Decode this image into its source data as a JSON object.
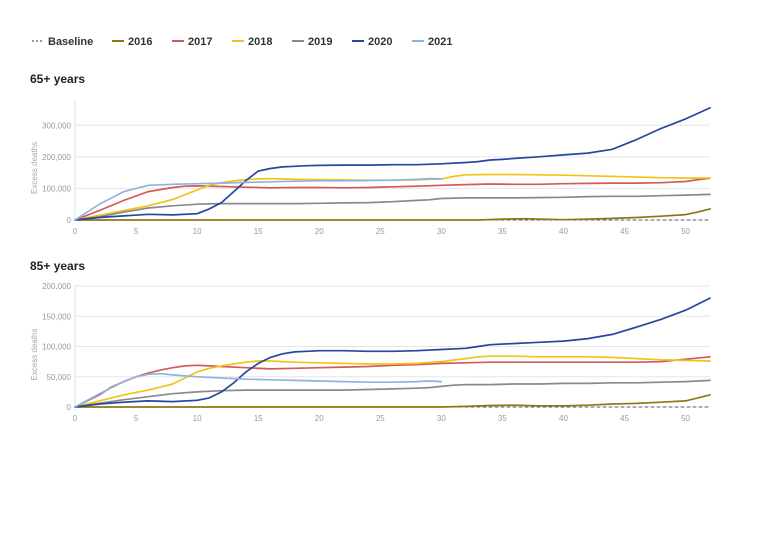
{
  "chart_data": [
    {
      "type": "line",
      "title": "65+ years",
      "xlabel": "",
      "ylabel": "Excess deaths",
      "xlim": [
        0,
        52
      ],
      "ylim": [
        0,
        380000
      ],
      "x_ticks": [
        0,
        5,
        10,
        15,
        20,
        25,
        30,
        35,
        40,
        45,
        50
      ],
      "y_ticks": [
        0,
        100000,
        200000,
        300000
      ],
      "y_tick_labels": [
        "0",
        "100,000",
        "200,000",
        "300,000"
      ],
      "grid": true,
      "legend_position": "top-left",
      "series": [
        {
          "name": "Baseline",
          "color": "#555a70",
          "dashed": true,
          "x": [
            0,
            52
          ],
          "y": [
            0,
            0
          ]
        },
        {
          "name": "2016",
          "color": "#8c7a10",
          "x": [
            0,
            5,
            10,
            15,
            20,
            25,
            30,
            33,
            35,
            37,
            38,
            40,
            42,
            44,
            46,
            48,
            50,
            51,
            52
          ],
          "y": [
            0,
            0,
            0,
            0,
            0,
            0,
            0,
            0,
            3000,
            4000,
            3000,
            1000,
            3000,
            5000,
            8000,
            12000,
            17000,
            25000,
            35000
          ]
        },
        {
          "name": "2017",
          "color": "#d35a5a",
          "x": [
            0,
            2,
            4,
            6,
            8,
            9,
            10,
            12,
            14,
            16,
            18,
            20,
            22,
            24,
            26,
            28,
            30,
            32,
            34,
            36,
            38,
            40,
            42,
            44,
            46,
            48,
            50,
            51,
            52
          ],
          "y": [
            0,
            30000,
            62000,
            90000,
            103000,
            107000,
            108000,
            106000,
            104000,
            102000,
            103000,
            103000,
            102000,
            103000,
            105000,
            107000,
            110000,
            112000,
            114000,
            113000,
            113000,
            115000,
            116000,
            117000,
            117000,
            118000,
            122000,
            128000,
            132000
          ]
        },
        {
          "name": "2018",
          "color": "#f0c419",
          "x": [
            0,
            2,
            4,
            6,
            8,
            9,
            10,
            11,
            12,
            13,
            14,
            15,
            16,
            17,
            18,
            20,
            22,
            24,
            26,
            28,
            30,
            31,
            32,
            34,
            36,
            38,
            40,
            42,
            44,
            46,
            48,
            50,
            52
          ],
          "y": [
            0,
            15000,
            30000,
            45000,
            65000,
            80000,
            95000,
            110000,
            118000,
            124000,
            128000,
            130000,
            131000,
            130000,
            129000,
            128000,
            127000,
            126000,
            126000,
            127000,
            130000,
            138000,
            143000,
            144000,
            144000,
            143000,
            142000,
            140000,
            138000,
            136000,
            134000,
            133000,
            133000
          ]
        },
        {
          "name": "2019",
          "color": "#8a8a8a",
          "x": [
            0,
            2,
            4,
            6,
            8,
            10,
            12,
            14,
            16,
            18,
            20,
            22,
            24,
            26,
            28,
            29,
            30,
            32,
            34,
            36,
            38,
            40,
            42,
            44,
            46,
            48,
            50,
            52
          ],
          "y": [
            0,
            10000,
            25000,
            38000,
            45000,
            50000,
            52000,
            52000,
            52000,
            52000,
            53000,
            54000,
            55000,
            58000,
            62000,
            64000,
            68000,
            70000,
            70000,
            70000,
            71000,
            72000,
            74000,
            75000,
            75000,
            77000,
            79000,
            81000
          ]
        },
        {
          "name": "2020",
          "color": "#2448a0",
          "x": [
            0,
            2,
            4,
            6,
            8,
            10,
            11,
            12,
            13,
            14,
            15,
            16,
            17,
            18,
            19,
            20,
            22,
            24,
            26,
            28,
            30,
            32,
            33,
            34,
            35,
            36,
            38,
            40,
            42,
            44,
            46,
            48,
            50,
            52
          ],
          "y": [
            0,
            8000,
            13000,
            18000,
            16000,
            20000,
            35000,
            55000,
            90000,
            125000,
            155000,
            163000,
            168000,
            170000,
            172000,
            173000,
            174000,
            174000,
            175000,
            175000,
            178000,
            182000,
            185000,
            190000,
            192000,
            195000,
            200000,
            206000,
            212000,
            224000,
            255000,
            290000,
            320000,
            355000
          ]
        },
        {
          "name": "2021",
          "color": "#8fb3e0",
          "x": [
            0,
            2,
            4,
            6,
            8,
            10,
            12,
            14,
            16,
            18,
            20,
            22,
            24,
            26,
            28,
            29,
            30
          ],
          "y": [
            0,
            50000,
            90000,
            110000,
            113000,
            115000,
            117000,
            119000,
            121000,
            123000,
            124000,
            124000,
            125000,
            126000,
            129000,
            131000,
            130000
          ]
        }
      ]
    },
    {
      "type": "line",
      "title": "85+ years",
      "xlabel": "",
      "ylabel": "Excess deaths",
      "xlim": [
        0,
        52
      ],
      "ylim": [
        0,
        200000
      ],
      "x_ticks": [
        0,
        5,
        10,
        15,
        20,
        25,
        30,
        35,
        40,
        45,
        50
      ],
      "y_ticks": [
        0,
        50000,
        100000,
        150000,
        200000
      ],
      "y_tick_labels": [
        "0",
        "50,000",
        "100,000",
        "150,000",
        "200,000"
      ],
      "grid": true,
      "legend_position": "top-left",
      "series": [
        {
          "name": "Baseline",
          "color": "#555a70",
          "dashed": true,
          "x": [
            0,
            52
          ],
          "y": [
            0,
            0
          ]
        },
        {
          "name": "2016",
          "color": "#8c7a10",
          "x": [
            0,
            5,
            10,
            15,
            20,
            25,
            30,
            32,
            34,
            36,
            38,
            40,
            42,
            44,
            46,
            48,
            50,
            51,
            52
          ],
          "y": [
            0,
            0,
            0,
            0,
            0,
            0,
            0,
            1000,
            2500,
            3000,
            2000,
            2000,
            3000,
            5000,
            6000,
            8000,
            10000,
            15000,
            20000
          ]
        },
        {
          "name": "2017",
          "color": "#d35a5a",
          "x": [
            0,
            2,
            3,
            4,
            5,
            6,
            7,
            8,
            9,
            10,
            11,
            12,
            14,
            16,
            18,
            20,
            22,
            24,
            25,
            26,
            28,
            30,
            32,
            34,
            36,
            38,
            40,
            42,
            44,
            46,
            48,
            50,
            52
          ],
          "y": [
            0,
            20000,
            33000,
            42000,
            50000,
            56000,
            61000,
            65000,
            68000,
            69000,
            68000,
            67000,
            65000,
            63000,
            64000,
            65000,
            66000,
            67000,
            68000,
            69000,
            70000,
            72000,
            73000,
            74000,
            74000,
            74000,
            74000,
            74000,
            74000,
            74000,
            75000,
            79000,
            83000
          ]
        },
        {
          "name": "2018",
          "color": "#f0c419",
          "x": [
            0,
            2,
            4,
            6,
            8,
            9,
            10,
            11,
            12,
            13,
            14,
            15,
            16,
            17,
            18,
            20,
            22,
            24,
            26,
            28,
            30,
            32,
            33,
            34,
            36,
            38,
            40,
            42,
            44,
            46,
            48,
            50,
            52
          ],
          "y": [
            0,
            10000,
            20000,
            28000,
            38000,
            48000,
            58000,
            64000,
            68000,
            71000,
            74000,
            76000,
            76000,
            75000,
            74000,
            73000,
            72000,
            71000,
            71000,
            72000,
            75000,
            80000,
            83000,
            84000,
            84000,
            83000,
            83000,
            83000,
            82000,
            80000,
            78000,
            77000,
            76000
          ]
        },
        {
          "name": "2019",
          "color": "#8a8a8a",
          "x": [
            0,
            2,
            4,
            6,
            8,
            10,
            12,
            14,
            16,
            18,
            20,
            22,
            24,
            26,
            28,
            29,
            30,
            31,
            32,
            34,
            36,
            38,
            40,
            42,
            44,
            46,
            48,
            50,
            52
          ],
          "y": [
            0,
            6000,
            12000,
            17000,
            22000,
            25000,
            27000,
            28000,
            28000,
            28000,
            28000,
            28000,
            29000,
            30000,
            31000,
            32000,
            34000,
            36000,
            37000,
            37000,
            38000,
            38000,
            39000,
            39000,
            40000,
            40000,
            41000,
            42000,
            44000
          ]
        },
        {
          "name": "2020",
          "color": "#2448a0",
          "x": [
            0,
            2,
            4,
            6,
            8,
            10,
            11,
            12,
            13,
            14,
            15,
            16,
            17,
            18,
            19,
            20,
            21,
            22,
            24,
            26,
            28,
            30,
            32,
            33,
            34,
            36,
            38,
            40,
            42,
            44,
            46,
            48,
            50,
            52
          ],
          "y": [
            0,
            5000,
            8000,
            10000,
            9000,
            11000,
            15000,
            25000,
            40000,
            58000,
            72000,
            82000,
            88000,
            91000,
            92000,
            93000,
            93000,
            93000,
            92000,
            92000,
            93000,
            95000,
            97000,
            100000,
            103000,
            105000,
            107000,
            109000,
            113000,
            120000,
            132000,
            145000,
            160000,
            180000
          ]
        },
        {
          "name": "2021",
          "color": "#8fb3e0",
          "x": [
            0,
            2,
            4,
            5,
            6,
            7,
            8,
            10,
            12,
            14,
            16,
            18,
            20,
            22,
            24,
            26,
            28,
            29,
            30
          ],
          "y": [
            0,
            22000,
            42000,
            50000,
            54000,
            55000,
            53000,
            50000,
            48000,
            46000,
            45000,
            44000,
            43000,
            42000,
            41000,
            41000,
            42000,
            43000,
            42000
          ]
        }
      ]
    }
  ]
}
